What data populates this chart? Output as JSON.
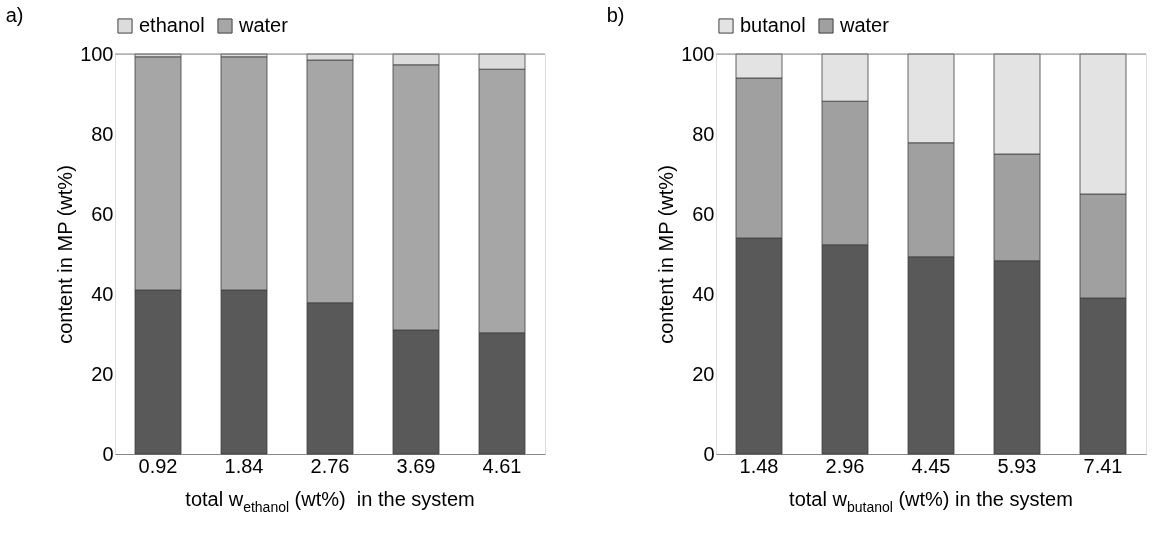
{
  "chart_data": [
    {
      "type": "bar",
      "title": "a)",
      "stacked": true,
      "xlabel": "total w$_{ethanol}$ (wt%)  in the system",
      "ylabel": "content in MP (wt%)",
      "categories": [
        "0.92",
        "1.84",
        "2.76",
        "3.69",
        "4.61"
      ],
      "series": [
        {
          "color": "#595959",
          "values": [
            41,
            41,
            37.8,
            31,
            30.3
          ]
        },
        {
          "name": "water",
          "color": "#a6a6a6",
          "values": [
            58.3,
            58.3,
            60.7,
            66.3,
            65.9
          ]
        },
        {
          "name": "ethanol",
          "color": "#dcdcdc",
          "values": [
            0.7,
            0.7,
            1.5,
            2.7,
            3.8
          ]
        }
      ],
      "ylim": [
        0,
        100
      ],
      "yticks": [
        0,
        20,
        40,
        60,
        80,
        100
      ],
      "grid": false,
      "legend": "top"
    },
    {
      "type": "bar",
      "title": "b)",
      "stacked": true,
      "xlabel": "total w$_{butanol}$ (wt%) in the system",
      "ylabel": "content in MP (wt%)",
      "categories": [
        "1.48",
        "2.96",
        "4.45",
        "5.93",
        "7.41"
      ],
      "series": [
        {
          "color": "#595959",
          "values": [
            54,
            52.3,
            49.3,
            48.3,
            39
          ]
        },
        {
          "name": "water",
          "color": "#a0a0a0",
          "values": [
            40,
            35.9,
            28.5,
            26.7,
            26
          ]
        },
        {
          "name": "butanol",
          "color": "#e3e3e3",
          "values": [
            6,
            11.8,
            22.2,
            25,
            35
          ]
        }
      ],
      "ylim": [
        0,
        100
      ],
      "yticks": [
        0,
        20,
        40,
        60,
        80,
        100
      ],
      "grid": false,
      "legend": "top"
    }
  ]
}
